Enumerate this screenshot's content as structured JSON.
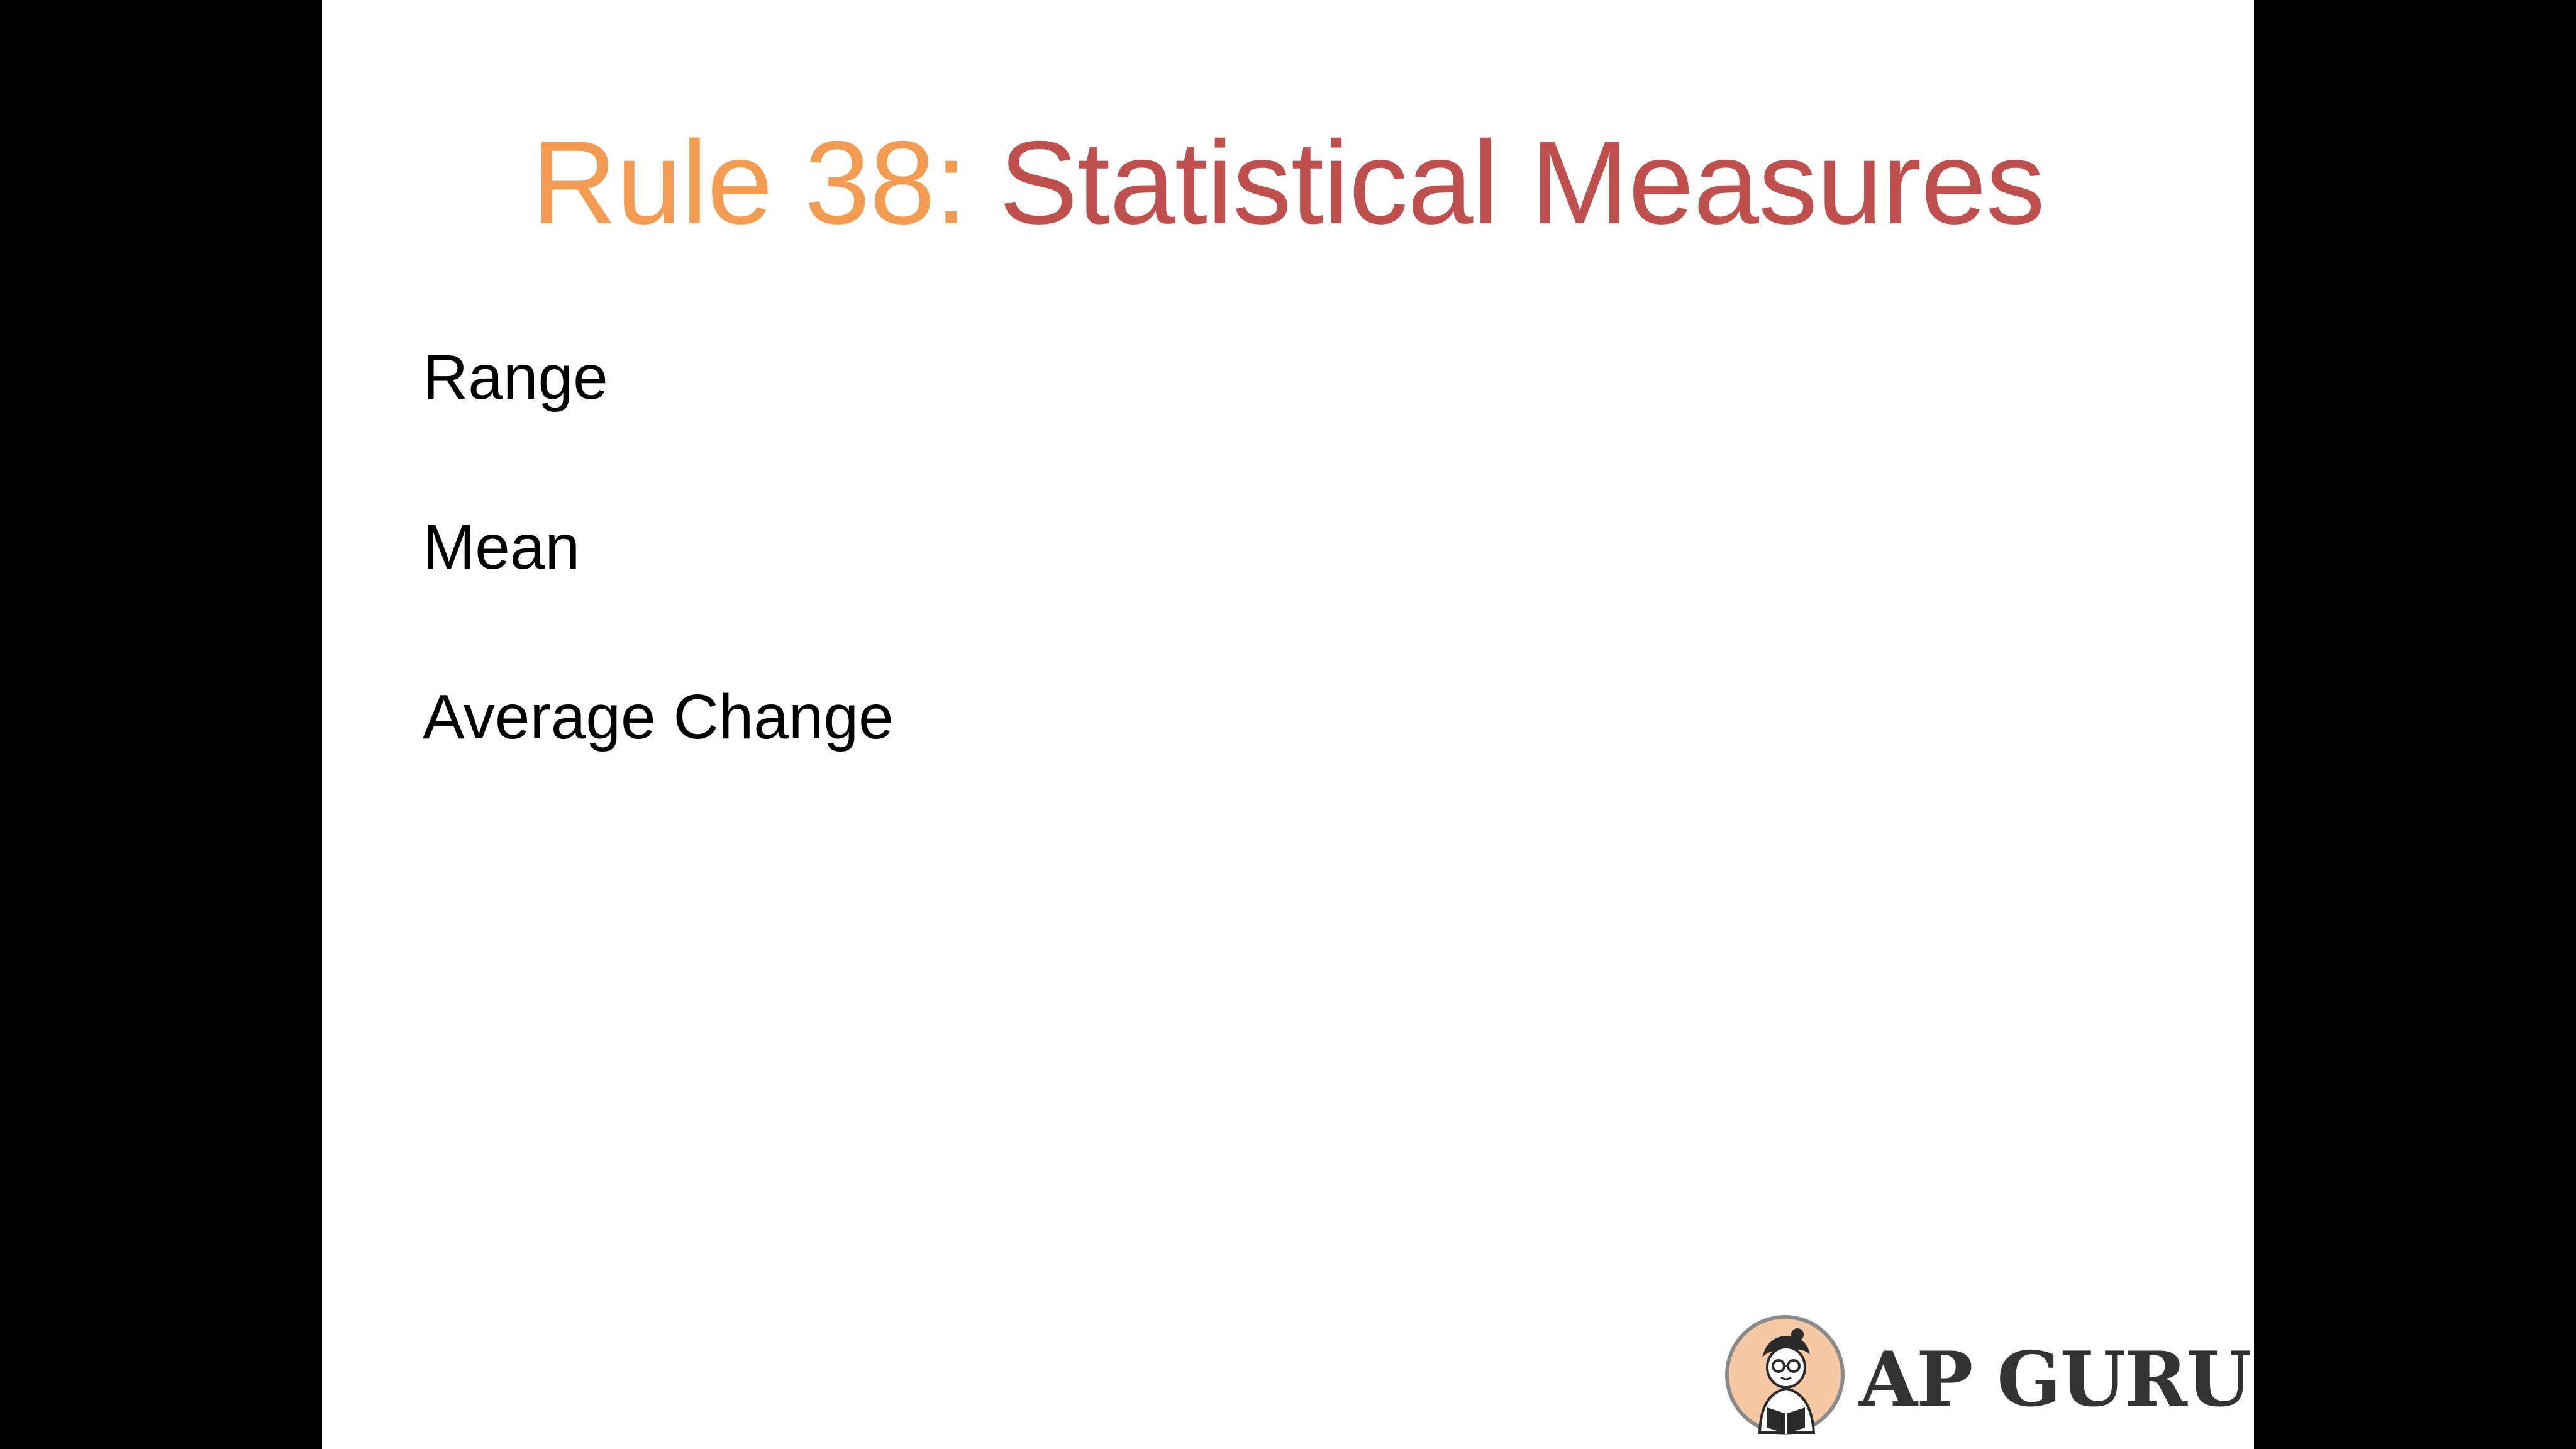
{
  "slide": {
    "title_prefix": "Rule 38: ",
    "title_main": "Statistical Measures",
    "bullets": [
      "Range",
      "Mean",
      "Average Change"
    ]
  },
  "logo": {
    "text": "AP GURU",
    "icon": "reading-student-icon"
  },
  "colors": {
    "title_prefix": "#F39B50",
    "title_main": "#C0504D",
    "body_text": "#000000",
    "logo_text": "#333333",
    "letterbox": "#000000"
  }
}
